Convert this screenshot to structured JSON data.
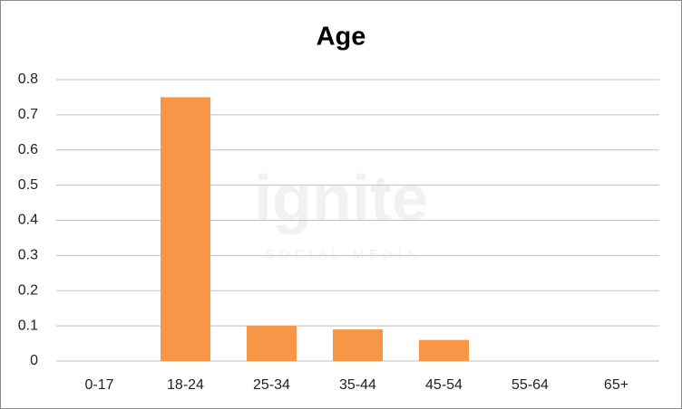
{
  "chart_data": {
    "type": "bar",
    "title": "Age",
    "categories": [
      "0-17",
      "18-24",
      "25-34",
      "35-44",
      "45-54",
      "55-64",
      "65+"
    ],
    "values": [
      0,
      0.75,
      0.1,
      0.09,
      0.06,
      0,
      0
    ],
    "color": "#f79646",
    "ylim": [
      0,
      0.8
    ],
    "yticks": [
      0,
      0.1,
      0.2,
      0.3,
      0.4,
      0.5,
      0.6,
      0.7,
      0.8
    ],
    "grid": true,
    "watermark": {
      "logo": "ignite",
      "tagline": "SOCIAL MEDIA"
    }
  }
}
